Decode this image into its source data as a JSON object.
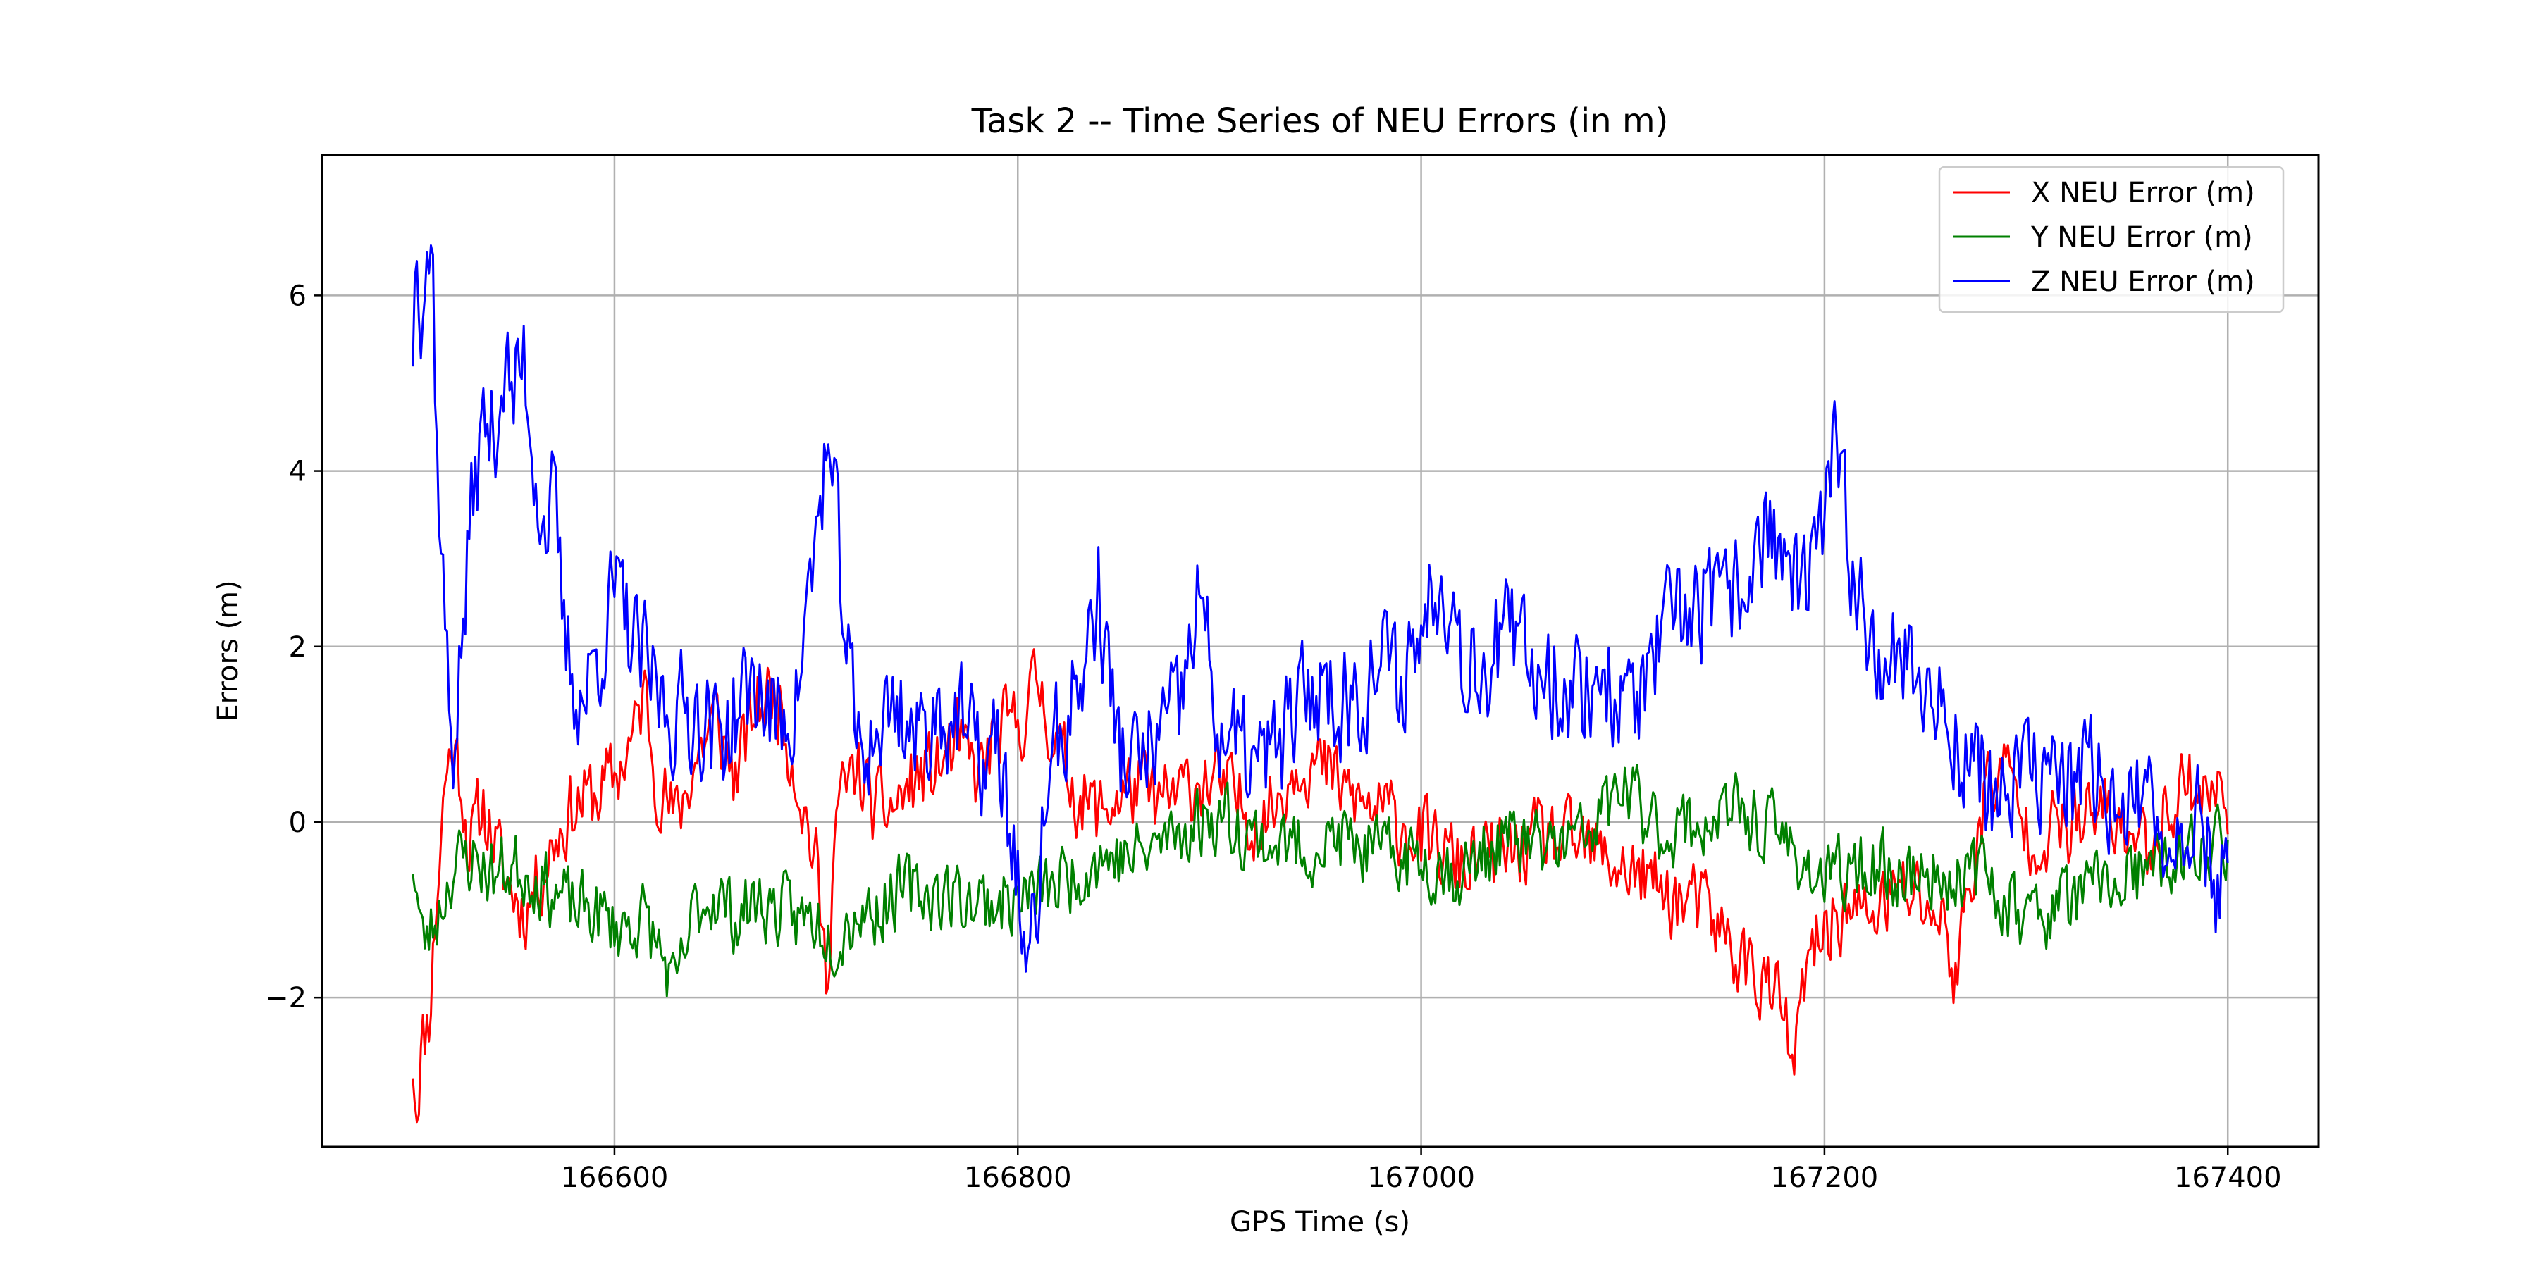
{
  "chart_data": {
    "type": "line",
    "title": "Task 2 -- Time Series of NEU Errors (in m)",
    "xlabel": "GPS Time (s)",
    "ylabel": "Errors (m)",
    "xlim": [
      166455,
      167445
    ],
    "ylim": [
      -3.7,
      7.6
    ],
    "xticks": [
      166600,
      166800,
      167000,
      167200,
      167400
    ],
    "xtick_labels": [
      "166600",
      "166800",
      "167000",
      "167200",
      "167400"
    ],
    "yticks": [
      -2,
      0,
      2,
      4,
      6
    ],
    "ytick_labels": [
      "−2",
      "0",
      "2",
      "4",
      "6"
    ],
    "grid": true,
    "legend_position": "top-right",
    "x_start": 166500,
    "x_end": 167400,
    "series": [
      {
        "name": "X NEU Error (m)",
        "color": "#ff0000",
        "anchors_x": [
          166500,
          166502,
          166504,
          166508,
          166512,
          166516,
          166520,
          166524,
          166528,
          166535,
          166545,
          166555,
          166560,
          166570,
          166580,
          166590,
          166600,
          166610,
          166615,
          166620,
          166630,
          166640,
          166650,
          166660,
          166670,
          166680,
          166690,
          166700,
          166705,
          166710,
          166720,
          166730,
          166740,
          166750,
          166760,
          166770,
          166780,
          166790,
          166800,
          166810,
          166820,
          166830,
          166840,
          166850,
          166860,
          166870,
          166880,
          166890,
          166900,
          166910,
          166920,
          166930,
          166940,
          166950,
          166960,
          166970,
          166980,
          166990,
          167000,
          167020,
          167040,
          167060,
          167080,
          167100,
          167120,
          167140,
          167150,
          167160,
          167170,
          167180,
          167185,
          167190,
          167200,
          167210,
          167220,
          167230,
          167240,
          167250,
          167260,
          167265,
          167270,
          167280,
          167290,
          167300,
          167320,
          167340,
          167360,
          167370,
          167380,
          167390,
          167400
        ],
        "anchors_y": [
          -2.7,
          -3.2,
          -2.6,
          -2.2,
          -0.8,
          0.5,
          0.9,
          0.5,
          -0.3,
          0.2,
          -0.6,
          -1.0,
          -0.8,
          -0.2,
          0.2,
          0.3,
          0.5,
          1.0,
          1.5,
          0.6,
          0.0,
          0.7,
          1.2,
          0.5,
          1.3,
          1.5,
          0.6,
          -0.5,
          -1.8,
          0.1,
          0.6,
          0.1,
          0.2,
          0.5,
          0.6,
          0.9,
          0.5,
          1.0,
          1.1,
          1.6,
          0.8,
          0.3,
          0.1,
          0.3,
          0.4,
          0.2,
          0.3,
          0.5,
          0.4,
          0.2,
          0.0,
          0.3,
          0.8,
          0.6,
          0.4,
          0.2,
          0.1,
          0.0,
          -0.2,
          -0.5,
          -0.4,
          -0.2,
          -0.3,
          -0.5,
          -0.8,
          -1.0,
          -1.3,
          -1.6,
          -1.8,
          -2.2,
          -2.9,
          -1.8,
          -1.2,
          -1.0,
          -1.1,
          -0.9,
          -0.8,
          -0.9,
          -1.2,
          -1.8,
          -1.0,
          0.4,
          0.6,
          -0.1,
          -0.1,
          0.1,
          -0.3,
          0.2,
          0.5,
          0.3,
          0.3
        ],
        "noise": 0.42,
        "seed": 11
      },
      {
        "name": "Y NEU Error (m)",
        "color": "#008000",
        "anchors_x": [
          166500,
          166505,
          166510,
          166520,
          166530,
          166540,
          166550,
          166560,
          166570,
          166580,
          166590,
          166600,
          166615,
          166625,
          166630,
          166640,
          166650,
          166660,
          166670,
          166680,
          166690,
          166700,
          166710,
          166720,
          166730,
          166740,
          166760,
          166780,
          166800,
          166820,
          166840,
          166860,
          166880,
          166900,
          166920,
          166940,
          166960,
          166980,
          167000,
          167020,
          167040,
          167060,
          167080,
          167090,
          167100,
          167110,
          167120,
          167140,
          167160,
          167180,
          167200,
          167220,
          167240,
          167260,
          167280,
          167300,
          167320,
          167340,
          167360,
          167380,
          167400
        ],
        "anchors_y": [
          -0.4,
          -1.4,
          -1.2,
          -0.5,
          -0.4,
          -0.6,
          -0.5,
          -0.6,
          -0.8,
          -1.0,
          -1.0,
          -1.2,
          -1.1,
          -1.6,
          -2.0,
          -1.0,
          -0.8,
          -1.1,
          -0.9,
          -1.0,
          -1.1,
          -1.1,
          -1.3,
          -1.0,
          -1.0,
          -0.8,
          -0.8,
          -0.9,
          -0.9,
          -0.7,
          -0.4,
          -0.4,
          -0.1,
          0.1,
          -0.2,
          -0.3,
          -0.2,
          -0.4,
          -0.4,
          -0.6,
          -0.2,
          -0.3,
          -0.2,
          0.1,
          0.4,
          0.1,
          -0.1,
          0.0,
          0.1,
          -0.2,
          -0.7,
          -0.5,
          -0.6,
          -0.6,
          -0.6,
          -1.1,
          -0.9,
          -0.7,
          -0.6,
          -0.4,
          -0.2
        ],
        "noise": 0.38,
        "seed": 23
      },
      {
        "name": "Z NEU Error (m)",
        "color": "#0000ff",
        "anchors_x": [
          166500,
          166502,
          166504,
          166507,
          166510,
          166512,
          166515,
          166518,
          166520,
          166525,
          166530,
          166535,
          166540,
          166545,
          166550,
          166555,
          166560,
          166565,
          166570,
          166575,
          166580,
          166585,
          166590,
          166600,
          166610,
          166620,
          166630,
          166640,
          166650,
          166660,
          166670,
          166680,
          166690,
          166700,
          166705,
          166710,
          166715,
          166720,
          166730,
          166740,
          166750,
          166760,
          166770,
          166780,
          166790,
          166800,
          166805,
          166810,
          166815,
          166820,
          166830,
          166840,
          166850,
          166860,
          166870,
          166880,
          166890,
          166900,
          166910,
          166920,
          166930,
          166940,
          166950,
          166960,
          166970,
          166980,
          166990,
          167000,
          167010,
          167020,
          167030,
          167040,
          167050,
          167060,
          167070,
          167080,
          167090,
          167100,
          167110,
          167120,
          167130,
          167140,
          167150,
          167160,
          167170,
          167180,
          167190,
          167200,
          167205,
          167210,
          167220,
          167230,
          167240,
          167250,
          167260,
          167270,
          167280,
          167290,
          167300,
          167310,
          167320,
          167330,
          167340,
          167350,
          167360,
          167370,
          167380,
          167390,
          167395,
          167400
        ],
        "anchors_y": [
          5.5,
          6.8,
          6.1,
          6.6,
          6.3,
          4.2,
          2.8,
          1.2,
          0.9,
          2.2,
          3.8,
          4.5,
          4.4,
          5.2,
          4.8,
          5.3,
          4.2,
          3.4,
          3.6,
          2.1,
          1.6,
          1.4,
          1.8,
          2.6,
          2.0,
          1.5,
          1.2,
          1.3,
          1.0,
          1.2,
          1.6,
          1.1,
          1.4,
          3.2,
          4.3,
          3.3,
          2.1,
          0.8,
          1.0,
          1.4,
          0.9,
          1.3,
          1.2,
          0.7,
          0.8,
          -0.6,
          -2.0,
          -0.8,
          0.6,
          0.9,
          1.5,
          2.6,
          0.8,
          0.6,
          1.0,
          1.2,
          2.6,
          1.0,
          0.8,
          0.6,
          0.9,
          1.3,
          1.6,
          1.4,
          1.5,
          1.8,
          1.6,
          2.2,
          3.0,
          2.0,
          1.8,
          2.1,
          1.9,
          1.8,
          1.6,
          1.5,
          1.7,
          1.3,
          1.5,
          2.0,
          2.4,
          2.5,
          2.4,
          2.7,
          3.4,
          3.0,
          2.5,
          3.4,
          4.2,
          3.4,
          2.3,
          2.0,
          1.9,
          1.5,
          1.2,
          0.8,
          0.4,
          0.3,
          0.5,
          0.6,
          0.4,
          0.5,
          0.4,
          0.3,
          0.0,
          -0.2,
          0.2,
          -0.3,
          -0.8,
          0.0
        ],
        "noise": 0.62,
        "seed": 37
      }
    ]
  }
}
